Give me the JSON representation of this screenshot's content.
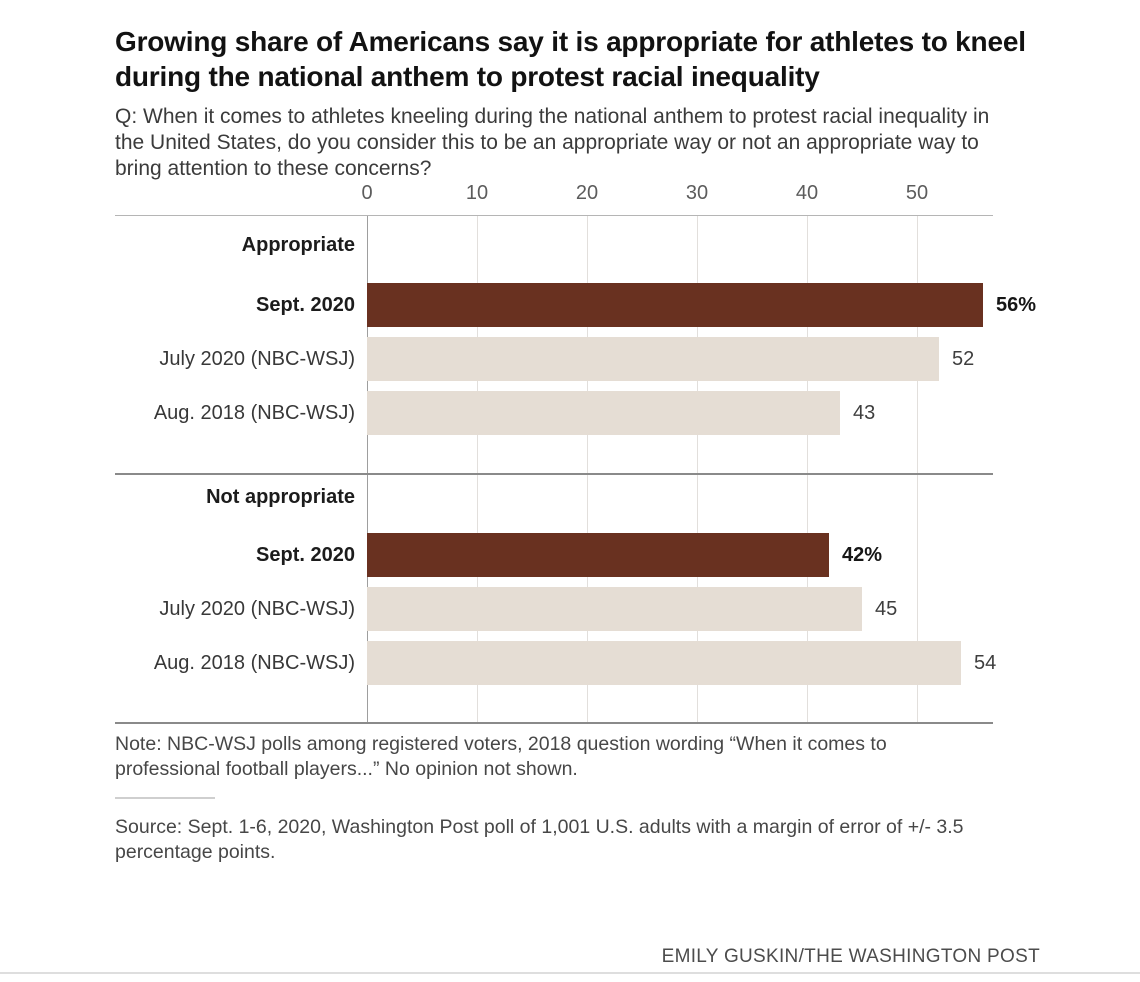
{
  "header": {
    "title": "Growing share of Americans say it is appropriate for athletes to kneel during the national anthem to protest racial inequality",
    "question": "Q: When it comes to athletes kneeling during the national anthem to protest racial inequality in the United States, do you consider this to be an appropriate way or not an appropriate way to bring attention to these concerns?"
  },
  "chart_data": {
    "type": "bar",
    "orientation": "horizontal",
    "unit": "percent",
    "title": "Growing share of Americans say it is appropriate for athletes to kneel during the national anthem to protest racial inequality",
    "axis": {
      "ticks": [
        0,
        10,
        20,
        30,
        40,
        50
      ],
      "min": 0,
      "max": 57,
      "grid": true,
      "position": "top"
    },
    "colors": {
      "highlight": "#693120",
      "muted": "#e5ddd4"
    },
    "groups": [
      {
        "label": "Appropriate",
        "rows": [
          {
            "label": "Sept. 2020",
            "value": 56,
            "display": "56%",
            "emphasis": true,
            "color": "#693120"
          },
          {
            "label": "July 2020 (NBC-WSJ)",
            "value": 52,
            "display": "52",
            "emphasis": false,
            "color": "#e5ddd4"
          },
          {
            "label": "Aug. 2018 (NBC-WSJ)",
            "value": 43,
            "display": "43",
            "emphasis": false,
            "color": "#e5ddd4"
          }
        ]
      },
      {
        "label": "Not appropriate",
        "rows": [
          {
            "label": "Sept. 2020",
            "value": 42,
            "display": "42%",
            "emphasis": true,
            "color": "#693120"
          },
          {
            "label": "July 2020 (NBC-WSJ)",
            "value": 45,
            "display": "45",
            "emphasis": false,
            "color": "#e5ddd4"
          },
          {
            "label": "Aug. 2018 (NBC-WSJ)",
            "value": 54,
            "display": "54",
            "emphasis": false,
            "color": "#e5ddd4"
          }
        ]
      }
    ]
  },
  "footer": {
    "note": "Note: NBC-WSJ polls among registered voters, 2018 question wording “When it comes to professional football players...” No opinion not shown.",
    "source": "Source: Sept. 1-6, 2020, Washington Post poll of 1,001 U.S. adults with a margin of error of +/- 3.5 percentage points.",
    "credit": "EMILY GUSKIN/THE WASHINGTON POST"
  }
}
